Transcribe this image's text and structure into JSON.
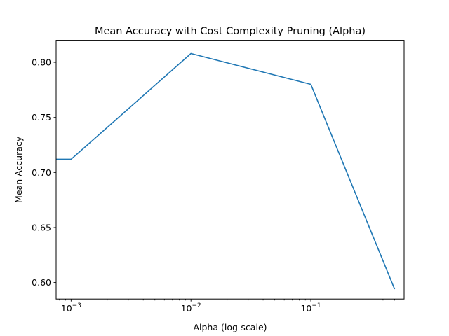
{
  "chart_data": {
    "type": "line",
    "title": "Mean Accuracy with Cost Complexity Pruning (Alpha)",
    "xlabel": "Alpha (log-scale)",
    "ylabel": "Mean Accuracy",
    "xscale": "log",
    "xlim": [
      0.00075,
      0.6
    ],
    "ylim": [
      0.585,
      0.82
    ],
    "grid": false,
    "x_ticks": [
      {
        "value": 0.001,
        "base": "10",
        "exp": "−3"
      },
      {
        "value": 0.01,
        "base": "10",
        "exp": "−2"
      },
      {
        "value": 0.1,
        "base": "10",
        "exp": "−1"
      }
    ],
    "y_ticks": [
      {
        "value": 0.6,
        "label": "0.60"
      },
      {
        "value": 0.65,
        "label": "0.65"
      },
      {
        "value": 0.7,
        "label": "0.70"
      },
      {
        "value": 0.75,
        "label": "0.75"
      },
      {
        "value": 0.8,
        "label": "0.80"
      }
    ],
    "series": [
      {
        "color": "#1f77b4",
        "x": [
          0.0001,
          0.001,
          0.01,
          0.1,
          0.5
        ],
        "y": [
          0.712,
          0.712,
          0.808,
          0.78,
          0.594
        ]
      }
    ]
  }
}
